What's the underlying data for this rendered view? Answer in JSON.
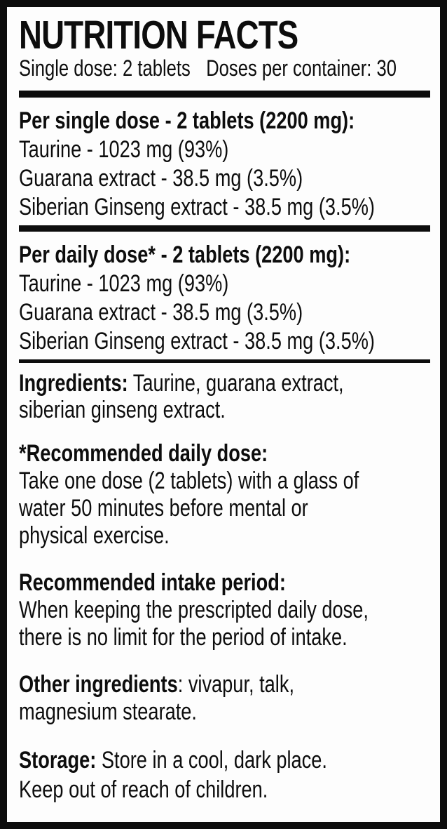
{
  "colors": {
    "ink": "#0d0d0d",
    "paper": "#fdfdfd"
  },
  "header": {
    "title": "NUTRITION FACTS",
    "single_dose": "Single dose: 2 tablets",
    "doses_per_container": "Doses per container: 30"
  },
  "per_single_dose": {
    "heading": "Per single dose - 2 tablets (2200 mg):",
    "rows": [
      {
        "text": "Taurine - 1023 mg (93%)"
      },
      {
        "text": "Guarana extract - 38.5 mg (3.5%)"
      },
      {
        "text": "Siberian Ginseng extract - 38.5 mg (3.5%)"
      }
    ]
  },
  "per_daily_dose": {
    "heading": "Per daily dose* - 2 tablets (2200 mg):",
    "rows": [
      {
        "text": "Taurine - 1023 mg (93%)"
      },
      {
        "text": "Guarana extract - 38.5 mg (3.5%)"
      },
      {
        "text": "Siberian Ginseng extract - 38.5 mg (3.5%)"
      }
    ]
  },
  "ingredients": {
    "label": "Ingredients:",
    "line1": " Taurine, guarana extract,",
    "line2": "siberian ginseng extract."
  },
  "recommended_daily_dose": {
    "heading": "*Recommended daily dose:",
    "lines": [
      "Take one dose (2 tablets) with a glass of",
      "water 50 minutes before mental or",
      "physical exercise."
    ]
  },
  "recommended_intake_period": {
    "heading": "Recommended intake period:",
    "lines": [
      "When keeping the prescripted daily dose,",
      "there is no limit for the period of intake."
    ]
  },
  "other_ingredients": {
    "label": "Other ingredients",
    "line1": ": vivapur, talk,",
    "line2": "magnesium stearate."
  },
  "storage": {
    "label": "Storage:",
    "line1": " Store in a cool, dark place.",
    "line2": "Keep out of reach of children."
  }
}
